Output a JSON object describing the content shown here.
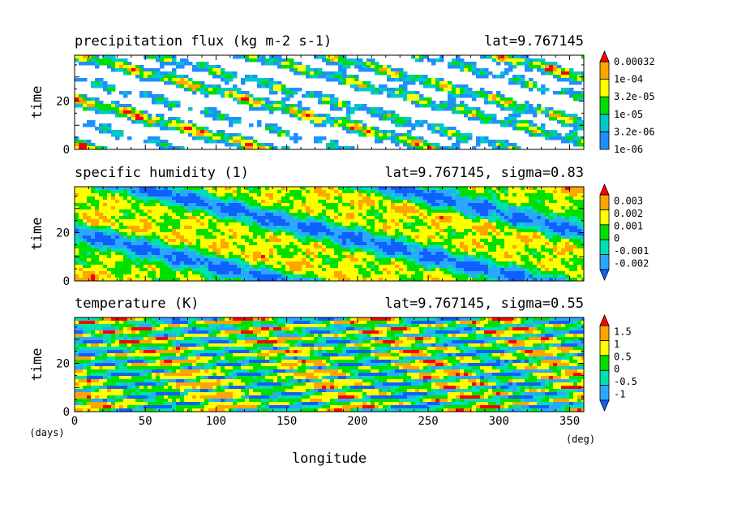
{
  "figure": {
    "xlabel": "longitude",
    "x_unit": "(deg)",
    "y_unit": "(days)"
  },
  "colors": {
    "precip_levels": [
      "#1f8fff",
      "#00c8c8",
      "#00dd00",
      "#ffff00",
      "#ffa500",
      "#ff0000"
    ],
    "diverging_levels": [
      "#1060ff",
      "#2aa8ff",
      "#00e0b0",
      "#00e000",
      "#ffff00",
      "#ffa500",
      "#ff0000"
    ]
  },
  "chart_data": [
    {
      "type": "heatmap",
      "title": "precipitation flux (kg m-2 s-1)",
      "subtitle": "lat=9.767145",
      "xlabel": "longitude",
      "ylabel": "time",
      "xlim": [
        0,
        360
      ],
      "ylim": [
        0,
        39
      ],
      "xticks": [
        0,
        50,
        100,
        150,
        200,
        250,
        300,
        350
      ],
      "yticks": [
        0,
        20
      ],
      "colorbar": {
        "labels": [
          "1e-06",
          "3.2e-06",
          "1e-05",
          "3.2e-05",
          "1e-04",
          "0.00032"
        ],
        "extend": "max",
        "below_lowest": "white"
      },
      "pattern": "westward-propagating rain streaks, sparse, many white gaps"
    },
    {
      "type": "heatmap",
      "title": "specific humidity (1)",
      "subtitle": "lat=9.767145, sigma=0.83",
      "xlabel": "longitude",
      "ylabel": "time",
      "xlim": [
        0,
        360
      ],
      "ylim": [
        0,
        39
      ],
      "xticks": [
        0,
        50,
        100,
        150,
        200,
        250,
        300,
        350
      ],
      "yticks": [
        0,
        20
      ],
      "colorbar": {
        "labels": [
          "-0.002",
          "-0.001",
          "0",
          "0.001",
          "0.002",
          "0.003"
        ],
        "extend": "both"
      },
      "pattern": "diagonal bands descending eastward (westward propagation)"
    },
    {
      "type": "heatmap",
      "title": "temperature (K)",
      "subtitle": "lat=9.767145, sigma=0.55",
      "xlabel": "longitude",
      "ylabel": "time",
      "xlim": [
        0,
        360
      ],
      "ylim": [
        0,
        39
      ],
      "xticks": [
        0,
        50,
        100,
        150,
        200,
        250,
        300,
        350
      ],
      "yticks": [
        0,
        20
      ],
      "colorbar": {
        "labels": [
          "-1",
          "-0.5",
          "0",
          "0.5",
          "1",
          "1.5"
        ],
        "extend": "both"
      },
      "pattern": "shallow eastward-rising streaks (eastward propagation)"
    }
  ]
}
